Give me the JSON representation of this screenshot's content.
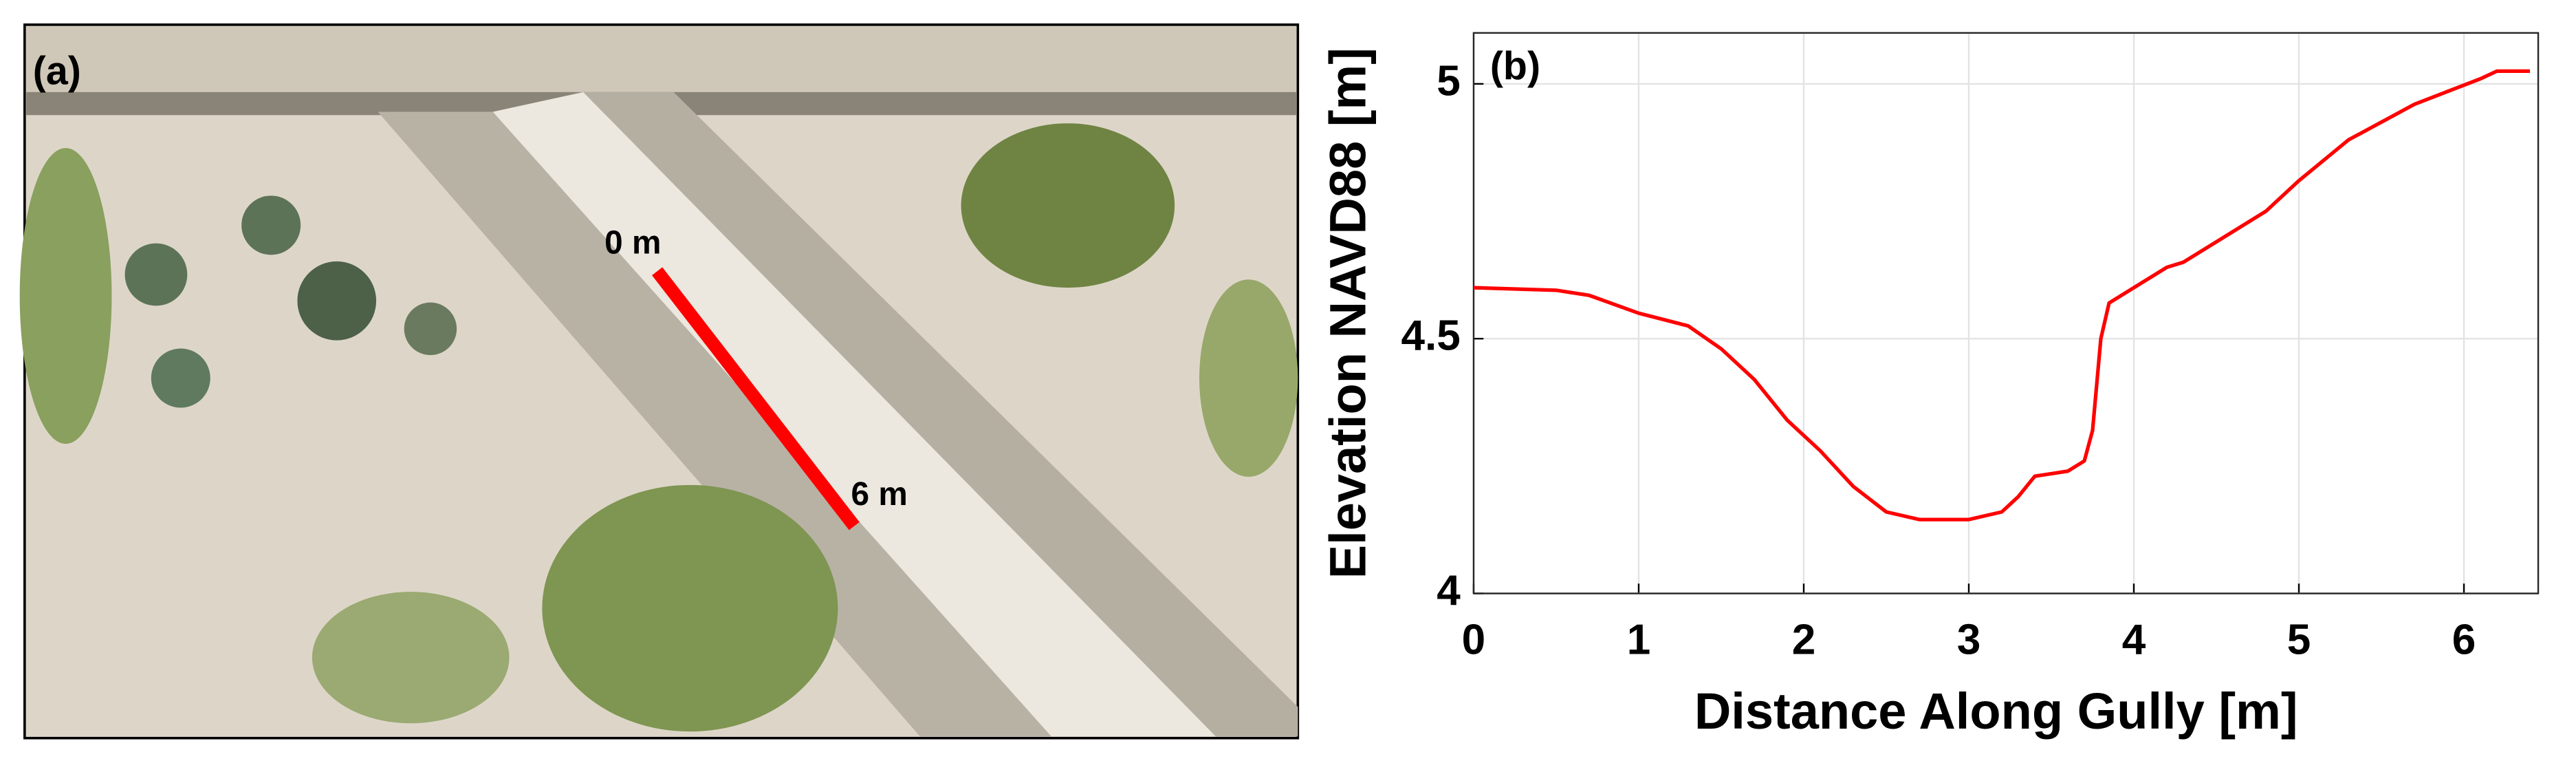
{
  "panel_a": {
    "label": "(a)",
    "start_label": "0 m",
    "end_label": "6 m"
  },
  "chart_data": {
    "type": "line",
    "panel_label": "(b)",
    "xlabel": "Distance Along Gully [m]",
    "ylabel": "Elevation NAVD88 [m]",
    "x": [
      0,
      0.5,
      0.7,
      1.0,
      1.3,
      1.5,
      1.7,
      1.9,
      2.1,
      2.3,
      2.5,
      2.7,
      3.0,
      3.2,
      3.3,
      3.4,
      3.5,
      3.6,
      3.7,
      3.75,
      3.8,
      3.85,
      4.0,
      4.2,
      4.3,
      4.5,
      4.8,
      5.0,
      5.3,
      5.7,
      5.9,
      6.1,
      6.2,
      6.4
    ],
    "values": [
      4.6,
      4.595,
      4.585,
      4.55,
      4.525,
      4.48,
      4.42,
      4.34,
      4.28,
      4.21,
      4.16,
      4.145,
      4.145,
      4.16,
      4.19,
      4.23,
      4.235,
      4.24,
      4.26,
      4.32,
      4.5,
      4.57,
      4.6,
      4.64,
      4.65,
      4.69,
      4.75,
      4.81,
      4.89,
      4.96,
      4.985,
      5.01,
      5.025,
      5.025
    ],
    "color": "#ff0000",
    "xlim": [
      0,
      6.45
    ],
    "xticks": [
      0,
      1,
      2,
      3,
      4,
      5,
      6
    ],
    "ylim": [
      4,
      5.1
    ],
    "yticks": [
      4,
      4.5,
      5
    ],
    "grid": true
  }
}
